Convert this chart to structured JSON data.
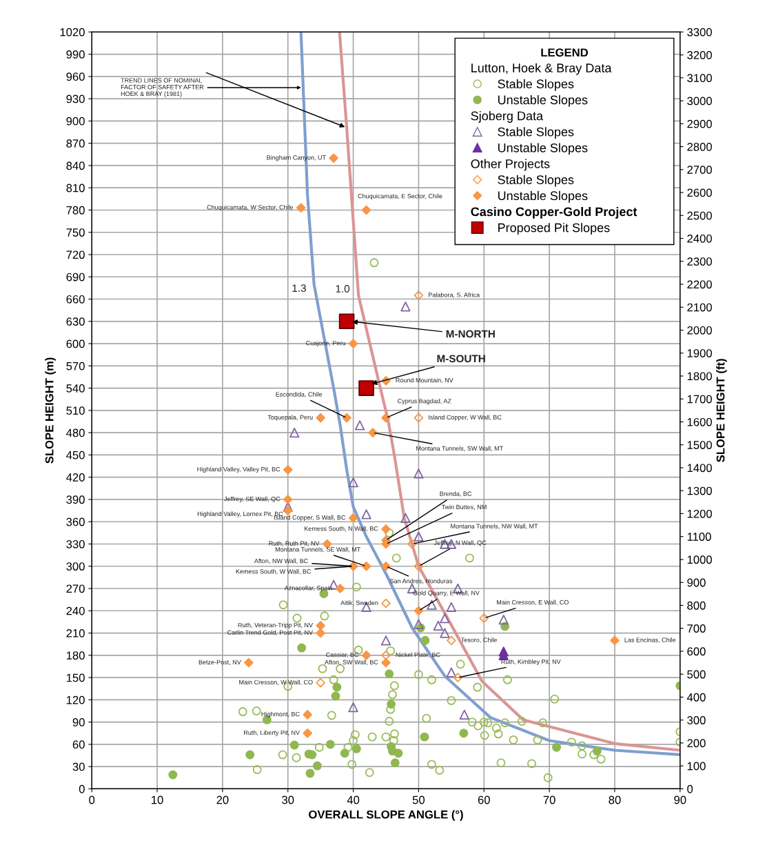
{
  "chart_data": {
    "type": "scatter",
    "xlabel": "OVERALL SLOPE ANGLE (°)",
    "ylabel": "SLOPE HEIGHT (m)",
    "y2label": "SLOPE HEIGHT (ft)",
    "legend_title": "LEGEND",
    "xlim": [
      0,
      90
    ],
    "xticks": [
      0,
      10,
      20,
      30,
      40,
      50,
      60,
      70,
      80,
      90
    ],
    "ylim": [
      0,
      1020
    ],
    "yticks": [
      0,
      30,
      60,
      90,
      120,
      150,
      180,
      210,
      240,
      270,
      300,
      330,
      360,
      390,
      420,
      450,
      480,
      510,
      540,
      570,
      600,
      630,
      660,
      690,
      720,
      750,
      780,
      810,
      840,
      870,
      900,
      930,
      960,
      990,
      1020
    ],
    "y2lim": [
      0,
      3300
    ],
    "y2ticks": [
      0,
      100,
      200,
      300,
      400,
      500,
      600,
      700,
      800,
      900,
      1000,
      1100,
      1200,
      1300,
      1400,
      1500,
      1600,
      1700,
      1800,
      1900,
      2000,
      2100,
      2200,
      2300,
      2400,
      2500,
      2600,
      2700,
      2800,
      2900,
      3000,
      3100,
      3200,
      3300
    ],
    "grid": true,
    "legend": "top right",
    "series": [
      {
        "type": "line",
        "color": "#7f9fcf",
        "marker": "none",
        "line_style": "solid",
        "x": [
          32,
          33,
          34,
          35.5,
          37,
          38,
          39,
          40,
          42,
          45,
          49,
          54,
          61,
          70,
          80,
          90
        ],
        "values": [
          1020,
          800,
          680,
          610,
          540,
          490,
          430,
          380,
          340,
          290,
          217,
          152,
          96,
          65,
          52,
          46
        ]
      },
      {
        "type": "line",
        "color": "#d99694",
        "marker": "none",
        "line_style": "solid",
        "x": [
          37.9,
          39,
          40.8,
          43.9,
          45.3,
          46.3,
          47.8,
          50,
          54.3,
          59.7,
          66,
          80,
          90
        ],
        "values": [
          1020,
          891,
          665,
          549,
          498,
          449,
          365,
          300,
          232,
          145,
          93,
          61,
          52
        ]
      },
      {
        "name": "Stable Slopes",
        "marker": "circle",
        "color": "#9bbb59",
        "x": [
          45.5,
          46.6,
          57.8,
          40.5,
          29.3,
          31.4,
          35.6,
          40.8,
          45.7,
          35.3,
          38,
          37,
          30,
          50,
          52,
          56.4,
          46.3,
          46,
          45.7,
          45.5,
          51.2,
          23.1,
          25.2,
          36.7,
          40.3,
          40,
          42.9,
          45,
          46.3,
          46.2,
          34.8,
          39.2,
          29.2,
          31.3,
          25.3,
          39.8,
          42.5,
          52,
          53.2,
          55,
          58.2,
          59.1,
          60.1,
          60,
          59,
          63.6,
          70.8,
          60.6,
          61.9,
          62.2,
          63.2,
          65.8,
          64.5,
          68.2,
          69,
          62.6,
          67.3,
          69.8,
          73.4,
          75,
          75,
          76.8,
          77.9,
          90,
          90,
          43.2
        ],
        "values": [
          345,
          311,
          311,
          272,
          248,
          230,
          233,
          187,
          186,
          162,
          162,
          147,
          138,
          154,
          147,
          168,
          139,
          127,
          107,
          91,
          95,
          104,
          105,
          99,
          73,
          65,
          70,
          70,
          74,
          65,
          56,
          56,
          46,
          42,
          26,
          33,
          22,
          33,
          25,
          119,
          90,
          85,
          72,
          90,
          137,
          147,
          121,
          89,
          82,
          74,
          89,
          91,
          66,
          66,
          89,
          35,
          34,
          15,
          63,
          58,
          47,
          46,
          40,
          77,
          63,
          709
        ]
      },
      {
        "name": "Unstable Slopes",
        "marker": "circle",
        "color": "#8fb84f",
        "x": [
          35.5,
          32.1,
          26.8,
          24.2,
          12.4,
          31,
          33.2,
          33.7,
          34.5,
          33.4,
          36.5,
          37.5,
          37.3,
          38.7,
          40.5,
          45.5,
          45.8,
          45.8,
          46,
          46.9,
          46.4,
          50.3,
          51,
          50.9,
          56.9,
          63.2,
          71.1,
          77.3,
          90
        ],
        "values": [
          263,
          190,
          93,
          46,
          19,
          59,
          47,
          46,
          31,
          21,
          60,
          137,
          125,
          48,
          54,
          155,
          114,
          57,
          51,
          48,
          35,
          217,
          200,
          70,
          75,
          219,
          56,
          51,
          139
        ]
      },
      {
        "name": "Stable Slopes",
        "marker": "triangle",
        "color": "#8064a2",
        "x": [
          48,
          41,
          31,
          40,
          50,
          30,
          42,
          48,
          50,
          54,
          55,
          37,
          49,
          56,
          42,
          52,
          55,
          54,
          53,
          54,
          45,
          50,
          63,
          55,
          40,
          57
        ],
        "values": [
          650,
          490,
          480,
          413,
          425,
          380,
          370,
          365,
          340,
          330,
          330,
          275,
          270,
          270,
          245,
          248,
          245,
          230,
          220,
          210,
          200,
          222,
          228,
          157,
          110,
          100
        ]
      },
      {
        "name": "Unstable Slopes",
        "marker": "triangle",
        "color": "#7030a0",
        "x": [
          63,
          63
        ],
        "values": [
          185,
          180
        ]
      },
      {
        "name": "Stable Slopes",
        "marker": "diamond",
        "color": "#f79646",
        "x": [
          50,
          50,
          49,
          50,
          45,
          60,
          55,
          45,
          56,
          35
        ],
        "values": [
          665,
          500,
          330,
          300,
          250,
          230,
          200,
          180,
          150,
          143
        ]
      },
      {
        "name": "Unstable Slopes",
        "marker": "diamond",
        "color": "#f79646",
        "x": [
          37,
          32,
          42,
          40,
          45,
          35,
          39,
          45,
          43,
          30,
          30,
          30,
          40,
          45,
          45,
          45,
          36,
          42,
          40,
          40,
          45,
          38,
          50,
          35,
          35,
          80,
          42,
          45,
          24,
          33,
          33
        ],
        "values": [
          850,
          783,
          780,
          600,
          550,
          500,
          500,
          500,
          480,
          430,
          390,
          375,
          365,
          350,
          335,
          330,
          330,
          300,
          300,
          300,
          300,
          270,
          240,
          220,
          210,
          200,
          180,
          170,
          170,
          100,
          75
        ]
      },
      {
        "name": "Proposed Pit Slopes",
        "marker": "square",
        "color": "#c00000",
        "x": [
          39,
          42
        ],
        "values": [
          630,
          540
        ]
      }
    ],
    "annotations": [
      "Lutton, Hoek & Bray Data",
      "Sjoberg Data",
      "Other Projects",
      "Casino Copper-Gold Project",
      {
        "text": "TREND LINES OF NOMINAL\nFACTOR OF SAFETY AFTER\nHOEK & BRAY (1981)",
        "x": 32.3,
        "y": 945
      },
      {
        "text": "1.3",
        "x": 34,
        "y": 680
      },
      {
        "text": "1.0",
        "x": 40.8,
        "y": 665
      },
      {
        "text": "M-NORTH",
        "x": 39.5,
        "y": 630
      },
      {
        "text": "M-SOUTH",
        "x": 42.5,
        "y": 545
      },
      {
        "text": "Bingham Canyon, UT",
        "x": 37,
        "y": 850
      },
      {
        "text": "Chuquicamata, W Sector, Chile",
        "x": 32,
        "y": 783
      },
      {
        "text": "Chuquicamata, E Sector, Chile",
        "x": 42,
        "y": 780
      },
      {
        "text": "Palabora, S. Africa",
        "x": 50,
        "y": 665
      },
      {
        "text": "Cuajone, Peru",
        "x": 40,
        "y": 600
      },
      {
        "text": "Round Mountain, NV",
        "x": 45,
        "y": 550
      },
      {
        "text": "Toquepala, Peru",
        "x": 35,
        "y": 500
      },
      {
        "text": "Escondida, Chile",
        "x": 39,
        "y": 500
      },
      {
        "text": "Cyprus Bagdad, AZ",
        "x": 45,
        "y": 500
      },
      {
        "text": "Island Copper, W Wall, BC",
        "x": 50,
        "y": 500
      },
      {
        "text": "Montana Tunnels, SW Wall, MT",
        "x": 43,
        "y": 480
      },
      {
        "text": "Highland Valley, Valley Pit, BC",
        "x": 30,
        "y": 430
      },
      {
        "text": "Jeffrey, SE Wall, QC",
        "x": 30,
        "y": 390
      },
      {
        "text": "Highland Valley, Lornex Pit, BC",
        "x": 30,
        "y": 375
      },
      {
        "text": "Island Copper, S Wall, BC",
        "x": 40,
        "y": 365
      },
      {
        "text": "Kemess South, N Wall, BC",
        "x": 45,
        "y": 350
      },
      {
        "text": "Brenda, BC",
        "x": 45,
        "y": 335
      },
      {
        "text": "Twin Buttes, NM",
        "x": 45,
        "y": 330
      },
      {
        "text": "Montana Tunnels, NW Wall, MT",
        "x": 49,
        "y": 330
      },
      {
        "text": "Ruth, Ruth Pit, NV",
        "x": 36,
        "y": 330
      },
      {
        "text": "Montana Tunnels, SE Wall, MT",
        "x": 42,
        "y": 300
      },
      {
        "text": "Afton, NW Wall, BC",
        "x": 40,
        "y": 300
      },
      {
        "text": "Kemess South, W Wall, BC",
        "x": 40,
        "y": 300
      },
      {
        "text": "San Andres, Honduras",
        "x": 45,
        "y": 300
      },
      {
        "text": "Jeffrey, N Wall, QC",
        "x": 50,
        "y": 300
      },
      {
        "text": "Aznacollar, Spain",
        "x": 38,
        "y": 270
      },
      {
        "text": "Aitik, Sweden",
        "x": 45,
        "y": 250
      },
      {
        "text": "Gold Quarry, E Wall, NV",
        "x": 50,
        "y": 240
      },
      {
        "text": "Main Cresson, E Wall, CO",
        "x": 60,
        "y": 230
      },
      {
        "text": "Ruth, Veteran-Tripp Pit, NV",
        "x": 35,
        "y": 220
      },
      {
        "text": "Carlin Trend Gold, Post Pit, NV",
        "x": 35,
        "y": 210
      },
      {
        "text": "Tesoro, Chile",
        "x": 55,
        "y": 200
      },
      {
        "text": "Las Encinas, Chile",
        "x": 80,
        "y": 200
      },
      {
        "text": "Cassiar, BC",
        "x": 42,
        "y": 180
      },
      {
        "text": "Nickel Plate, BC",
        "x": 45,
        "y": 180
      },
      {
        "text": "Afton, SW Wall, BC",
        "x": 45,
        "y": 170
      },
      {
        "text": "Betze-Post, NV",
        "x": 24,
        "y": 170
      },
      {
        "text": "Ruth, Kimbley Pit, NV",
        "x": 56,
        "y": 150
      },
      {
        "text": "Main Cresson, W Wall, CO",
        "x": 35,
        "y": 143
      },
      {
        "text": "Highmont, BC",
        "x": 33,
        "y": 100
      },
      {
        "text": "Ruth, Liberty Pit, NV",
        "x": 33,
        "y": 75
      }
    ]
  }
}
